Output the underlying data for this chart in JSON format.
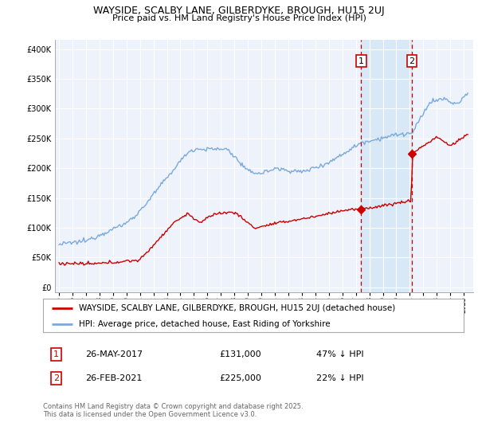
{
  "title": "WAYSIDE, SCALBY LANE, GILBERDYKE, BROUGH, HU15 2UJ",
  "subtitle": "Price paid vs. HM Land Registry's House Price Index (HPI)",
  "yticks": [
    0,
    50000,
    100000,
    150000,
    200000,
    250000,
    300000,
    350000,
    400000
  ],
  "xlim_start": 1994.7,
  "xlim_end": 2025.7,
  "ylim_min": -8000,
  "ylim_max": 415000,
  "background_color": "#ffffff",
  "plot_bg_color": "#eef2fb",
  "grid_color": "#ffffff",
  "hpi_line_color": "#7aaadd",
  "price_line_color": "#cc0000",
  "highlight_bg_color": "#d8e8f6",
  "vline_color": "#cc0000",
  "marker_color": "#cc0000",
  "sale1_x": 2017.4,
  "sale1_y": 131000,
  "sale2_x": 2021.15,
  "sale2_y": 225000,
  "sale1_label": "1",
  "sale2_label": "2",
  "legend_price_label": "WAYSIDE, SCALBY LANE, GILBERDYKE, BROUGH, HU15 2UJ (detached house)",
  "legend_hpi_label": "HPI: Average price, detached house, East Riding of Yorkshire",
  "table_row1": [
    "1",
    "26-MAY-2017",
    "£131,000",
    "47% ↓ HPI"
  ],
  "table_row2": [
    "2",
    "26-FEB-2021",
    "£225,000",
    "22% ↓ HPI"
  ],
  "footer_text": "Contains HM Land Registry data © Crown copyright and database right 2025.\nThis data is licensed under the Open Government Licence v3.0.",
  "title_fontsize": 9,
  "subtitle_fontsize": 8,
  "axis_fontsize": 7,
  "legend_fontsize": 7.5,
  "table_fontsize": 8,
  "footer_fontsize": 6
}
